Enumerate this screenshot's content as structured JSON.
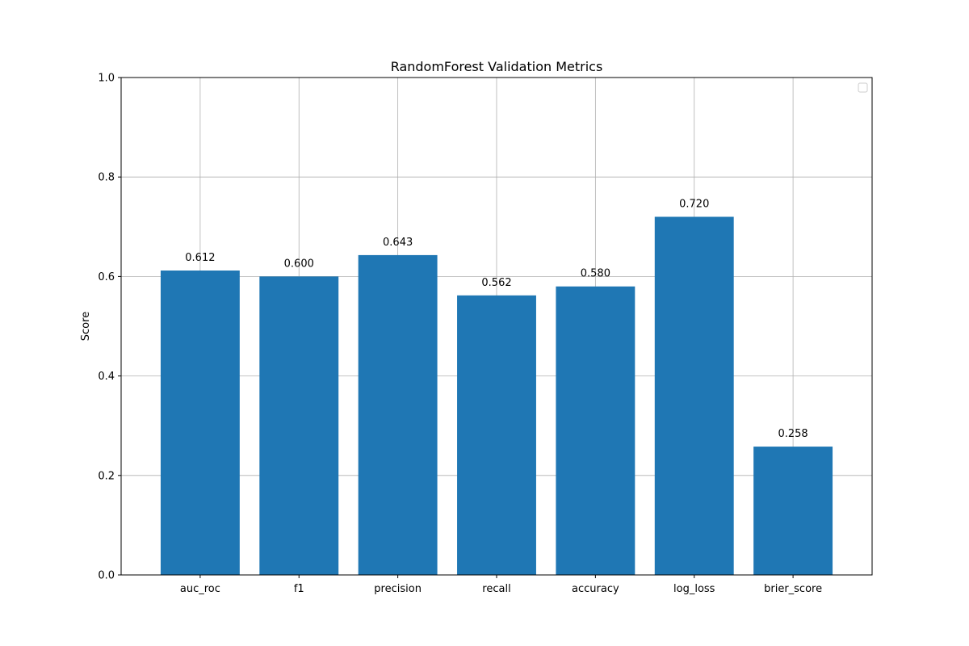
{
  "chart_data": {
    "type": "bar",
    "title": "RandomForest Validation Metrics",
    "xlabel": "",
    "ylabel": "Score",
    "categories": [
      "auc_roc",
      "f1",
      "precision",
      "recall",
      "accuracy",
      "log_loss",
      "brier_score"
    ],
    "values": [
      0.612,
      0.6,
      0.643,
      0.562,
      0.58,
      0.72,
      0.258
    ],
    "value_labels": [
      "0.612",
      "0.600",
      "0.643",
      "0.562",
      "0.580",
      "0.720",
      "0.258"
    ],
    "ylim": [
      0,
      1.0
    ],
    "yticks": [
      0.0,
      0.2,
      0.4,
      0.6,
      0.8,
      1.0
    ],
    "ytick_labels": [
      "0.0",
      "0.2",
      "0.4",
      "0.6",
      "0.8",
      "1.0"
    ],
    "grid": true,
    "legend": {
      "placement": "top-right",
      "entries": []
    },
    "colors": {
      "bar": "#1f77b4",
      "grid": "#b0b0b0",
      "axis": "#000000",
      "legend_border": "#cccccc"
    }
  }
}
